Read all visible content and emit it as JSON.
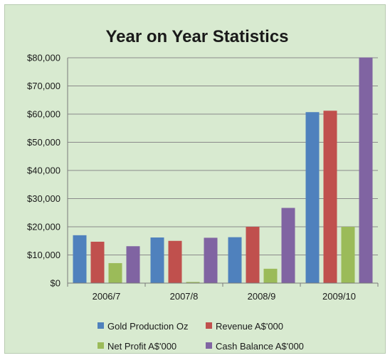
{
  "chart_data": {
    "type": "bar",
    "title": "Year on Year Statistics",
    "categories": [
      "2006/7",
      "2007/8",
      "2008/9",
      "2009/10"
    ],
    "series": [
      {
        "name": "Gold Production Oz",
        "color": "#4f81bd",
        "values": [
          17000,
          16200,
          16300,
          60700
        ]
      },
      {
        "name": "Revenue A$'000",
        "color": "#c0504d",
        "values": [
          14700,
          15000,
          20000,
          61200
        ]
      },
      {
        "name": "Net Profit A$'000",
        "color": "#9bbb59",
        "values": [
          7100,
          400,
          5100,
          20000
        ]
      },
      {
        "name": "Cash  Balance A$'000",
        "color": "#8064a2",
        "values": [
          13100,
          16100,
          26700,
          80100
        ]
      }
    ],
    "ylim": [
      0,
      80000
    ],
    "yticks": [
      "$0",
      "$10,000",
      "$20,000",
      "$30,000",
      "$40,000",
      "$50,000",
      "$60,000",
      "$70,000",
      "$80,000"
    ],
    "grid": true,
    "legend_position": "bottom"
  }
}
